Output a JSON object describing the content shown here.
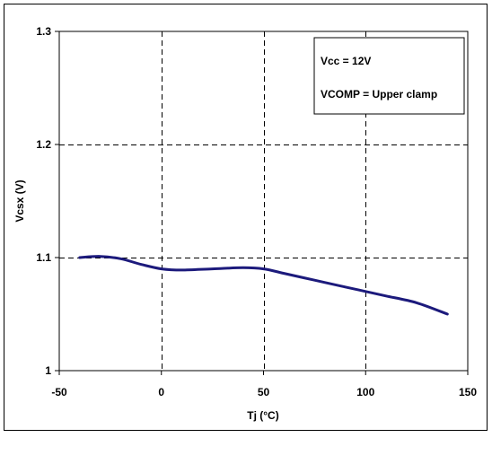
{
  "chart_data": {
    "type": "line",
    "title": "",
    "xlabel": "Tj (°C)",
    "ylabel": "Vcsx (V)",
    "xlim": [
      -50,
      150
    ],
    "ylim": [
      1,
      1.3
    ],
    "x_ticks": [
      -50,
      0,
      50,
      100,
      150
    ],
    "x_tick_labels": [
      "-50",
      "0",
      "50",
      "100",
      "150"
    ],
    "y_ticks": [
      1,
      1.1,
      1.2,
      1.3
    ],
    "y_tick_labels": [
      "1",
      "1.1",
      "1.2",
      "1.3"
    ],
    "grid": "dashed",
    "legend": {
      "placement": "top-right",
      "lines": [
        "Vcc = 12V",
        "VCOMP = Upper clamp"
      ]
    },
    "series": [
      {
        "color": "#1c1a7c",
        "x": [
          -40,
          -30,
          -20,
          -10,
          0,
          10,
          25,
          40,
          50,
          60,
          75,
          90,
          100,
          110,
          125,
          140
        ],
        "y": [
          1.1,
          1.101,
          1.099,
          1.094,
          1.09,
          1.089,
          1.09,
          1.091,
          1.09,
          1.086,
          1.08,
          1.074,
          1.07,
          1.066,
          1.06,
          1.05
        ]
      }
    ]
  }
}
